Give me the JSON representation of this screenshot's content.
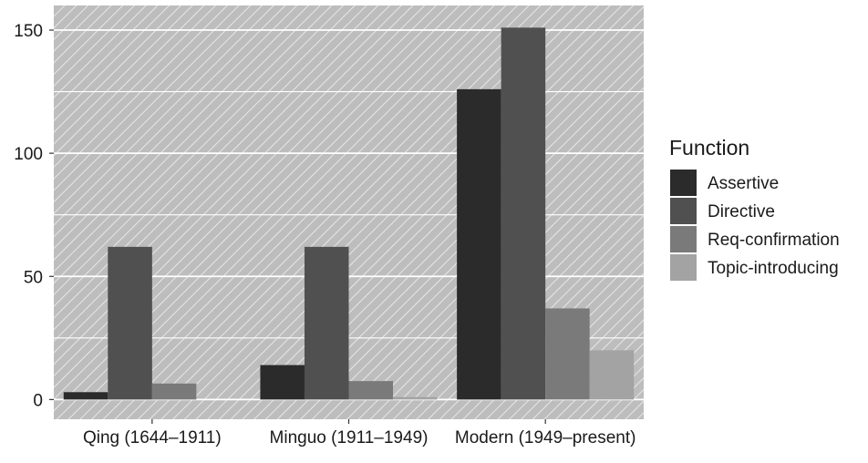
{
  "chart_data": {
    "type": "bar",
    "title": "",
    "xlabel": "",
    "ylabel": "",
    "categories": [
      "Qing (1644–1911)",
      "Minguo (1911–1949)",
      "Modern (1949–present)"
    ],
    "series": [
      {
        "name": "Assertive",
        "values": [
          3,
          14,
          126
        ],
        "color": "#2b2b2b"
      },
      {
        "name": "Directive",
        "values": [
          62,
          62,
          151
        ],
        "color": "#505050"
      },
      {
        "name": "Req-confirmation",
        "values": [
          6.5,
          7.5,
          37
        ],
        "color": "#7a7a7a"
      },
      {
        "name": "Topic-introducing",
        "values": [
          0,
          1,
          20
        ],
        "color": "#a3a3a3"
      }
    ],
    "yticks": [
      "0",
      "50",
      "100",
      "150"
    ],
    "ytick_values": [
      0,
      50,
      100,
      150
    ],
    "ylim": [
      -8,
      160
    ],
    "grid": true,
    "legend": {
      "title": "Function",
      "position": "right"
    },
    "panel_background": "#bdbdbd"
  }
}
